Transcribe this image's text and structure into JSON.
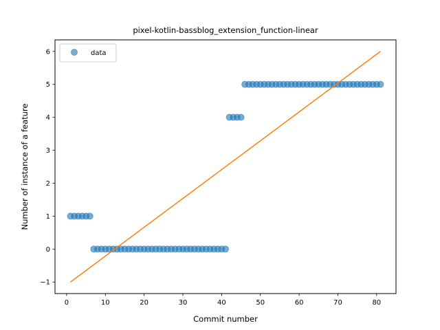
{
  "chart_data": {
    "type": "scatter",
    "title": "pixel-kotlin-bassblog_extension_function-linear",
    "xlabel": "Commit number",
    "ylabel": "Number of instance of a feature",
    "xlim": [
      -3.0,
      85.0
    ],
    "ylim": [
      -1.35,
      6.35
    ],
    "xticks": [
      0,
      10,
      20,
      30,
      40,
      50,
      60,
      70,
      80
    ],
    "yticks": [
      -1,
      0,
      1,
      2,
      3,
      4,
      5,
      6
    ],
    "ytick_labels": [
      "−1",
      "0",
      "1",
      "2",
      "3",
      "4",
      "5",
      "6"
    ],
    "grid": false,
    "legend": {
      "position": "top-left",
      "entries": [
        "data"
      ]
    },
    "series": [
      {
        "name": "data",
        "kind": "scatter",
        "color": "#1f77b4",
        "points": [
          [
            1,
            1
          ],
          [
            2,
            1
          ],
          [
            3,
            1
          ],
          [
            4,
            1
          ],
          [
            5,
            1
          ],
          [
            6,
            1
          ],
          [
            7,
            0
          ],
          [
            8,
            0
          ],
          [
            9,
            0
          ],
          [
            10,
            0
          ],
          [
            11,
            0
          ],
          [
            12,
            0
          ],
          [
            13,
            0
          ],
          [
            14,
            0
          ],
          [
            15,
            0
          ],
          [
            16,
            0
          ],
          [
            17,
            0
          ],
          [
            18,
            0
          ],
          [
            19,
            0
          ],
          [
            20,
            0
          ],
          [
            21,
            0
          ],
          [
            22,
            0
          ],
          [
            23,
            0
          ],
          [
            24,
            0
          ],
          [
            25,
            0
          ],
          [
            26,
            0
          ],
          [
            27,
            0
          ],
          [
            28,
            0
          ],
          [
            29,
            0
          ],
          [
            30,
            0
          ],
          [
            31,
            0
          ],
          [
            32,
            0
          ],
          [
            33,
            0
          ],
          [
            34,
            0
          ],
          [
            35,
            0
          ],
          [
            36,
            0
          ],
          [
            37,
            0
          ],
          [
            38,
            0
          ],
          [
            39,
            0
          ],
          [
            40,
            0
          ],
          [
            41,
            0
          ],
          [
            42,
            4
          ],
          [
            43,
            4
          ],
          [
            44,
            4
          ],
          [
            45,
            4
          ],
          [
            46,
            5
          ],
          [
            47,
            5
          ],
          [
            48,
            5
          ],
          [
            49,
            5
          ],
          [
            50,
            5
          ],
          [
            51,
            5
          ],
          [
            52,
            5
          ],
          [
            53,
            5
          ],
          [
            54,
            5
          ],
          [
            55,
            5
          ],
          [
            56,
            5
          ],
          [
            57,
            5
          ],
          [
            58,
            5
          ],
          [
            59,
            5
          ],
          [
            60,
            5
          ],
          [
            61,
            5
          ],
          [
            62,
            5
          ],
          [
            63,
            5
          ],
          [
            64,
            5
          ],
          [
            65,
            5
          ],
          [
            66,
            5
          ],
          [
            67,
            5
          ],
          [
            68,
            5
          ],
          [
            69,
            5
          ],
          [
            70,
            5
          ],
          [
            71,
            5
          ],
          [
            72,
            5
          ],
          [
            73,
            5
          ],
          [
            74,
            5
          ],
          [
            75,
            5
          ],
          [
            76,
            5
          ],
          [
            77,
            5
          ],
          [
            78,
            5
          ],
          [
            79,
            5
          ],
          [
            80,
            5
          ],
          [
            81,
            5
          ]
        ]
      },
      {
        "kind": "line",
        "color": "#ff7f0e",
        "points": [
          [
            1,
            -1.0
          ],
          [
            81,
            6.0
          ]
        ]
      }
    ]
  }
}
